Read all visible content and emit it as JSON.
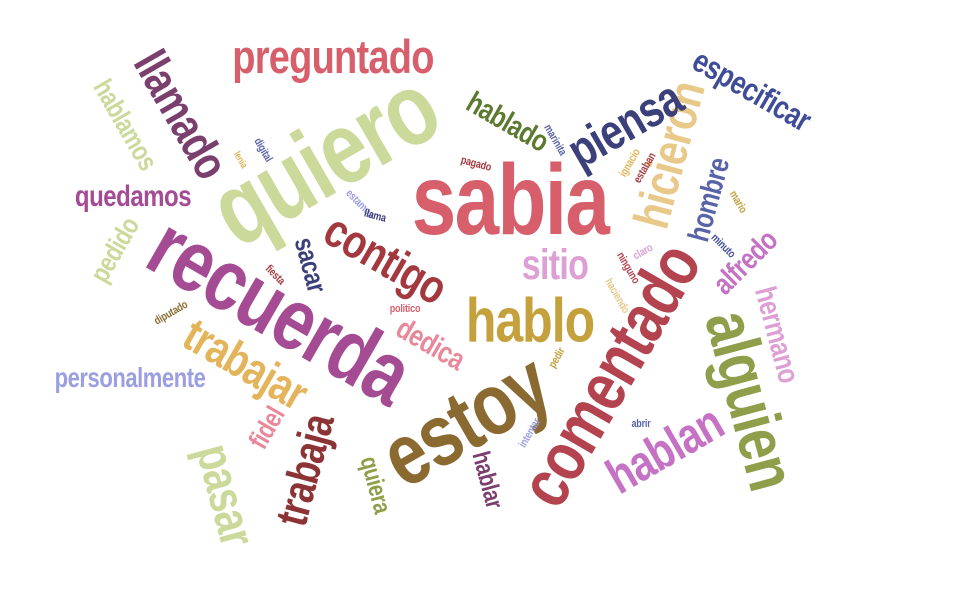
{
  "words": [
    {
      "text": "sabia",
      "color": "#d65f6b"
    },
    {
      "text": "quiero",
      "color": "#cbd99a"
    },
    {
      "text": "recuerda",
      "color": "#a44b94"
    },
    {
      "text": "estoy",
      "color": "#8a6a30"
    },
    {
      "text": "comentado",
      "color": "#b2434f"
    },
    {
      "text": "alguien",
      "color": "#8e9e4a"
    },
    {
      "text": "hablo",
      "color": "#c4a13c"
    },
    {
      "text": "hicieron",
      "color": "#e8c98a"
    },
    {
      "text": "piensa",
      "color": "#3b3f7a"
    },
    {
      "text": "preguntado",
      "color": "#d65f6b"
    },
    {
      "text": "llamado",
      "color": "#7b3f6e"
    },
    {
      "text": "contigo",
      "color": "#a3393f"
    },
    {
      "text": "trabajar",
      "color": "#e3b45a"
    },
    {
      "text": "trabaja",
      "color": "#8c3335"
    },
    {
      "text": "hablan",
      "color": "#c572c5"
    },
    {
      "text": "pasar",
      "color": "#cbd99a"
    },
    {
      "text": "sitio",
      "color": "#dd9fd4"
    },
    {
      "text": "especificar",
      "color": "#3f4d99"
    },
    {
      "text": "hablado",
      "color": "#5c7a2f"
    },
    {
      "text": "hablamos",
      "color": "#cbd99a"
    },
    {
      "text": "quedamos",
      "color": "#a44b94"
    },
    {
      "text": "personalmente",
      "color": "#9b9ee0"
    },
    {
      "text": "hombre",
      "color": "#5963a8"
    },
    {
      "text": "alfredo",
      "color": "#c572c5"
    },
    {
      "text": "hermano",
      "color": "#dd9fd4"
    },
    {
      "text": "pedido",
      "color": "#cbd99a"
    },
    {
      "text": "sacar",
      "color": "#3b3f7a"
    },
    {
      "text": "dedica",
      "color": "#e8889a"
    },
    {
      "text": "quiera",
      "color": "#8e9e4a"
    },
    {
      "text": "hablar",
      "color": "#7b3f6e"
    },
    {
      "text": "fidel",
      "color": "#e8889a"
    },
    {
      "text": "digital",
      "color": "#5963a8"
    },
    {
      "text": "lenia",
      "color": "#e3b45a"
    },
    {
      "text": "marinita",
      "color": "#5963a8"
    },
    {
      "text": "pagado",
      "color": "#a3393f"
    },
    {
      "text": "ignacio",
      "color": "#e3b45a"
    },
    {
      "text": "estaban",
      "color": "#a3393f"
    },
    {
      "text": "mario",
      "color": "#c4a13c"
    },
    {
      "text": "estamos",
      "color": "#9b9ee0"
    },
    {
      "text": "llama",
      "color": "#3b3f7a"
    },
    {
      "text": "minuto",
      "color": "#3f4d99"
    },
    {
      "text": "claro",
      "color": "#dd9fd4"
    },
    {
      "text": "ninguno",
      "color": "#b2434f"
    },
    {
      "text": "fiesta",
      "color": "#a3393f"
    },
    {
      "text": "politico",
      "color": "#d65f6b"
    },
    {
      "text": "diputado",
      "color": "#8a6a30"
    },
    {
      "text": "pedir",
      "color": "#c4a13c"
    },
    {
      "text": "intentar",
      "color": "#9b9ee0"
    },
    {
      "text": "abrir",
      "color": "#5963a8"
    },
    {
      "text": "haciendo",
      "color": "#e8c98a"
    }
  ]
}
